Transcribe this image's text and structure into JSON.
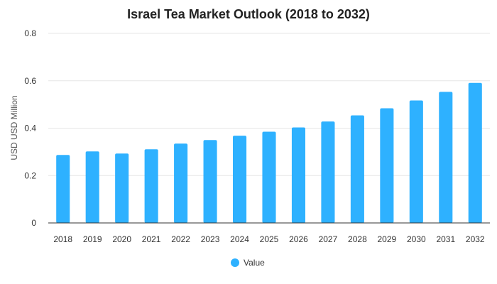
{
  "chart_data": {
    "type": "bar",
    "title": "Israel Tea Market Outlook (2018 to 2032)",
    "xlabel": "",
    "ylabel": "USD USD Million",
    "ylim": [
      0,
      0.8
    ],
    "yticks": [
      "0",
      "0.2",
      "0.4",
      "0.6",
      "0.8"
    ],
    "ytick_values": [
      0,
      0.2,
      0.4,
      0.6,
      0.8
    ],
    "grid": true,
    "legend_position": "bottom",
    "categories": [
      "2018",
      "2019",
      "2020",
      "2021",
      "2022",
      "2023",
      "2024",
      "2025",
      "2026",
      "2027",
      "2028",
      "2029",
      "2030",
      "2031",
      "2032"
    ],
    "series": [
      {
        "name": "Value",
        "color": "#2eb1ff",
        "values": [
          0.287,
          0.302,
          0.293,
          0.311,
          0.335,
          0.35,
          0.368,
          0.385,
          0.403,
          0.428,
          0.454,
          0.484,
          0.517,
          0.553,
          0.591
        ]
      }
    ]
  }
}
